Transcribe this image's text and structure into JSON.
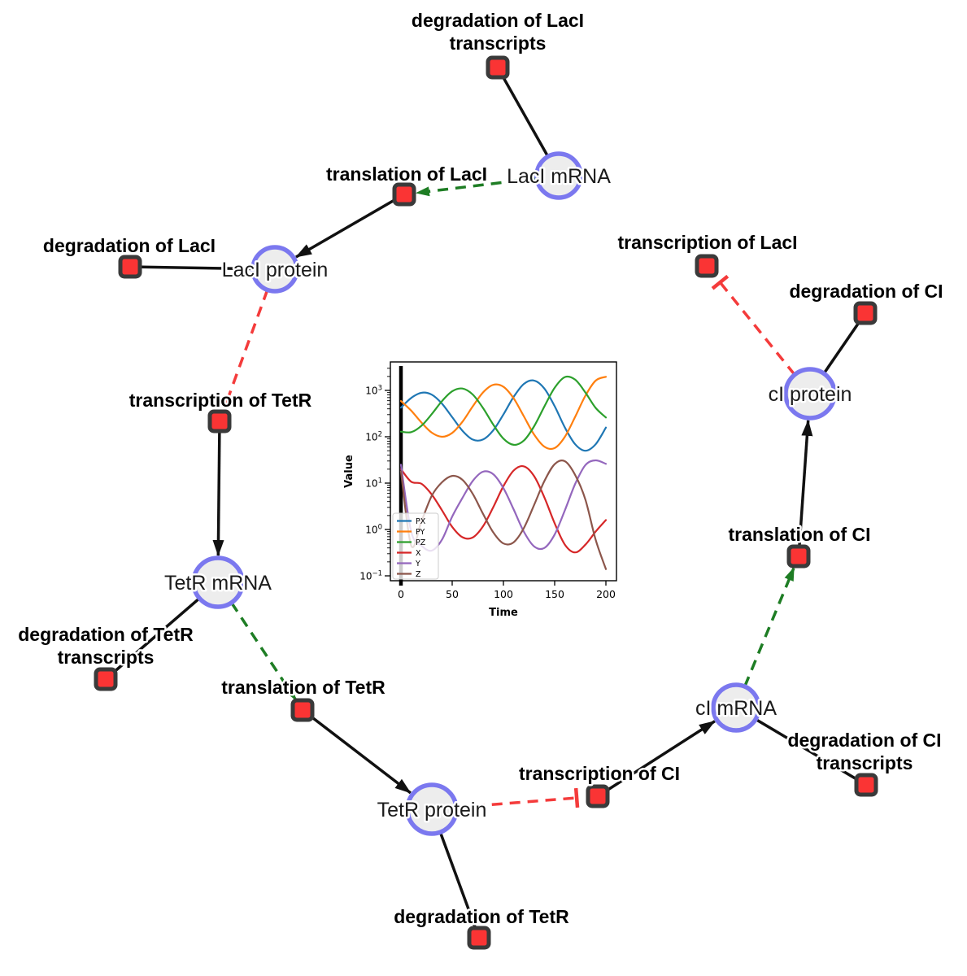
{
  "diagram": {
    "species": [
      {
        "id": "laci_mrna",
        "label": "LacI mRNA"
      },
      {
        "id": "laci_protein",
        "label": "LacI protein"
      },
      {
        "id": "tetr_mrna",
        "label": "TetR mRNA"
      },
      {
        "id": "tetr_protein",
        "label": "TetR protein"
      },
      {
        "id": "ci_mrna",
        "label": "cI mRNA"
      },
      {
        "id": "ci_protein",
        "label": "cI protein"
      }
    ],
    "reactions": [
      {
        "id": "deg_laci_tx",
        "lines": [
          "degradation of LacI",
          "transcripts"
        ]
      },
      {
        "id": "trans_laci",
        "lines": [
          "translation of LacI"
        ]
      },
      {
        "id": "deg_laci",
        "lines": [
          "degradation of LacI"
        ]
      },
      {
        "id": "txn_laci",
        "lines": [
          "transcription of LacI"
        ]
      },
      {
        "id": "deg_ci",
        "lines": [
          "degradation of CI"
        ]
      },
      {
        "id": "txn_tetr",
        "lines": [
          "transcription of TetR"
        ]
      },
      {
        "id": "deg_tetr_tx",
        "lines": [
          "degradation of TetR",
          "transcripts"
        ]
      },
      {
        "id": "trans_tetr",
        "lines": [
          "translation of TetR"
        ]
      },
      {
        "id": "txn_ci",
        "lines": [
          "transcription of CI"
        ]
      },
      {
        "id": "deg_ci_tx",
        "lines": [
          "degradation of CI",
          "transcripts"
        ]
      },
      {
        "id": "trans_ci",
        "lines": [
          "translation of CI"
        ]
      },
      {
        "id": "deg_tetr",
        "lines": [
          "degradation of TetR"
        ]
      }
    ],
    "edges": [
      {
        "from": "laci_mrna",
        "to": "deg_laci_tx",
        "type": "consumption"
      },
      {
        "from": "laci_mrna",
        "to": "trans_laci",
        "type": "activation"
      },
      {
        "from": "trans_laci",
        "to": "laci_protein",
        "type": "production"
      },
      {
        "from": "laci_protein",
        "to": "deg_laci",
        "type": "consumption"
      },
      {
        "from": "laci_protein",
        "to": "txn_tetr",
        "type": "inhibition"
      },
      {
        "from": "txn_tetr",
        "to": "tetr_mrna",
        "type": "production"
      },
      {
        "from": "tetr_mrna",
        "to": "deg_tetr_tx",
        "type": "consumption"
      },
      {
        "from": "tetr_mrna",
        "to": "trans_tetr",
        "type": "activation"
      },
      {
        "from": "trans_tetr",
        "to": "tetr_protein",
        "type": "production"
      },
      {
        "from": "tetr_protein",
        "to": "deg_tetr",
        "type": "consumption"
      },
      {
        "from": "tetr_protein",
        "to": "txn_ci",
        "type": "inhibition"
      },
      {
        "from": "txn_ci",
        "to": "ci_mrna",
        "type": "production"
      },
      {
        "from": "ci_mrna",
        "to": "deg_ci_tx",
        "type": "consumption"
      },
      {
        "from": "ci_mrna",
        "to": "trans_ci",
        "type": "activation"
      },
      {
        "from": "trans_ci",
        "to": "ci_protein",
        "type": "production"
      },
      {
        "from": "ci_protein",
        "to": "deg_ci",
        "type": "consumption"
      },
      {
        "from": "ci_protein",
        "to": "txn_laci",
        "type": "inhibition"
      }
    ],
    "colors": {
      "species_fill": "#ededed",
      "species_stroke": "#7b78ef",
      "reaction_fill": "#fa3434",
      "reaction_stroke": "#3a3a3a",
      "flow_edge": "#111111",
      "activation_edge": "#1e7d24",
      "inhibition_edge": "#f43b3b",
      "node_label": "#1b1b1b",
      "reaction_label": "#000000"
    }
  },
  "chart_data": {
    "type": "line",
    "title": "",
    "xlabel": "Time",
    "ylabel": "Value",
    "y_scale": "log",
    "xlim": [
      -10,
      210
    ],
    "ylim_log_exponents": [
      -1.1,
      3.6
    ],
    "x_tick_labels": [
      "0",
      "50",
      "100",
      "150",
      "200"
    ],
    "x_ticks": [
      0,
      50,
      100,
      150,
      200
    ],
    "y_tick_base": "10",
    "y_tick_exponents": [
      "3",
      "2",
      "1",
      "0",
      "−1"
    ],
    "y_tick_exponent_values": [
      3,
      2,
      1,
      0,
      -1
    ],
    "t0_marker": {
      "x": 0,
      "color": "#000000"
    },
    "legend_position": "lower left",
    "x": [
      0,
      10,
      20,
      30,
      40,
      50,
      60,
      70,
      80,
      90,
      100,
      110,
      120,
      130,
      140,
      150,
      160,
      170,
      180,
      190,
      200
    ],
    "series": [
      {
        "name": "PX",
        "color": "#1f77b4",
        "values": [
          425,
          688,
          890,
          811,
          519,
          265,
          135,
          87,
          87,
          137,
          303,
          726,
          1384,
          1633,
          1093,
          457,
          158,
          69,
          50,
          69,
          158
        ]
      },
      {
        "name": "PY",
        "color": "#ff7f0e",
        "values": [
          590,
          366,
          203,
          123,
          100,
          121,
          210,
          449,
          899,
          1318,
          1196,
          672,
          274,
          111,
          61,
          57,
          100,
          269,
          769,
          1627,
          1966
        ]
      },
      {
        "name": "PZ",
        "color": "#2ca02c",
        "values": [
          129,
          126,
          173,
          307,
          586,
          956,
          1097,
          816,
          420,
          184,
          91,
          67,
          83,
          169,
          451,
          1140,
          1938,
          1702,
          900,
          420,
          260
        ]
      },
      {
        "name": "X",
        "color": "#d62728",
        "values": [
          20,
          10.7,
          9.7,
          5.7,
          2.6,
          1.14,
          0.68,
          0.67,
          1.16,
          3.0,
          8.6,
          18.7,
          23,
          14.1,
          4.9,
          1.36,
          0.47,
          0.32,
          0.47,
          0.9,
          1.6
        ]
      },
      {
        "name": "Y",
        "color": "#9467bd",
        "values": [
          25,
          0.9,
          0.45,
          0.35,
          0.6,
          1.9,
          4.8,
          11.1,
          17.6,
          15.6,
          7.8,
          2.7,
          0.89,
          0.43,
          0.4,
          0.78,
          2.6,
          9.6,
          24.5,
          31,
          26
        ]
      },
      {
        "name": "Z",
        "color": "#8c564b",
        "values": [
          18,
          0.45,
          1.5,
          5.3,
          10.4,
          14.3,
          11.8,
          5.9,
          2.2,
          0.87,
          0.5,
          0.53,
          1.08,
          3.4,
          11.1,
          25.6,
          29.6,
          15,
          4.4,
          0.6,
          0.14
        ]
      }
    ]
  }
}
